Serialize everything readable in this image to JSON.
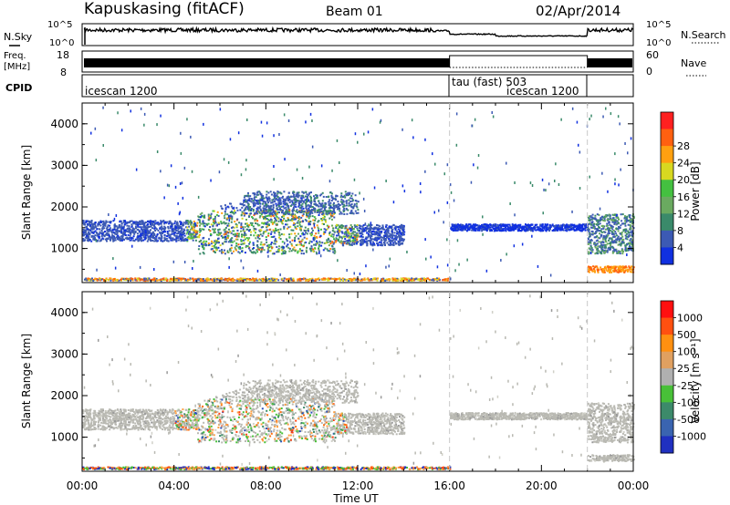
{
  "header": {
    "station": "Kapuskasing (fitACF)",
    "beam": "Beam 01",
    "date": "02/Apr/2014"
  },
  "sky_panel": {
    "label_left": "N.Sky",
    "label_right": "N.Search",
    "left_ticks": [
      "10^5",
      "10^0"
    ],
    "right_ticks": [
      "10^5",
      "10^0"
    ]
  },
  "freq_panel": {
    "label_left_1": "Freq.",
    "label_left_2": "[MHz]",
    "label_right": "Nave",
    "left_ticks": [
      "18",
      "8"
    ],
    "right_ticks": [
      "60",
      "0"
    ]
  },
  "cpid_panel": {
    "label": "CPID",
    "segments": [
      {
        "label": "icescan 1200",
        "start_hour": 0
      },
      {
        "label": "tau (fast) 503",
        "start_hour": 16
      },
      {
        "label": "icescan 1200",
        "start_hour": 22
      }
    ]
  },
  "chart_data": [
    {
      "type": "heatmap",
      "name": "power",
      "ylabel": "Slant Range [km]",
      "yticks": [
        "1000",
        "2000",
        "3000",
        "4000"
      ],
      "ylim": [
        180,
        4500
      ],
      "xlim_hours": [
        0,
        24
      ],
      "colorbar": {
        "label": "Power [dB]",
        "ticks": [
          "4",
          "8",
          "12",
          "16",
          "20",
          "24",
          "28"
        ],
        "colors": [
          "#1030e0",
          "#3c5ab4",
          "#3a8a6a",
          "#6aaa60",
          "#44c040",
          "#d8d820",
          "#ffa010",
          "#ff6010",
          "#ff2020"
        ]
      }
    },
    {
      "type": "heatmap",
      "name": "velocity",
      "ylabel": "Slant Range [km]",
      "yticks": [
        "1000",
        "2000",
        "3000",
        "4000"
      ],
      "ylim": [
        180,
        4500
      ],
      "xlim_hours": [
        0,
        24
      ],
      "xlabel": "Time UT",
      "xticks": [
        "00:00",
        "04:00",
        "08:00",
        "12:00",
        "16:00",
        "20:00",
        "00:00"
      ],
      "colorbar": {
        "label": "Velocity [m s⁻¹]",
        "ticks": [
          "1000",
          "500",
          "100",
          "25",
          "-25",
          "-100",
          "-500",
          "-1000"
        ],
        "colors": [
          "#2030c0",
          "#3a64b0",
          "#3c8a6a",
          "#48c038",
          "#b0b0b0",
          "#e0a060",
          "#ff9010",
          "#ff5010",
          "#ff1010"
        ]
      }
    }
  ],
  "colors": {
    "grey_scatter": "#b9b9b2",
    "separator": "#c8c8c8"
  }
}
